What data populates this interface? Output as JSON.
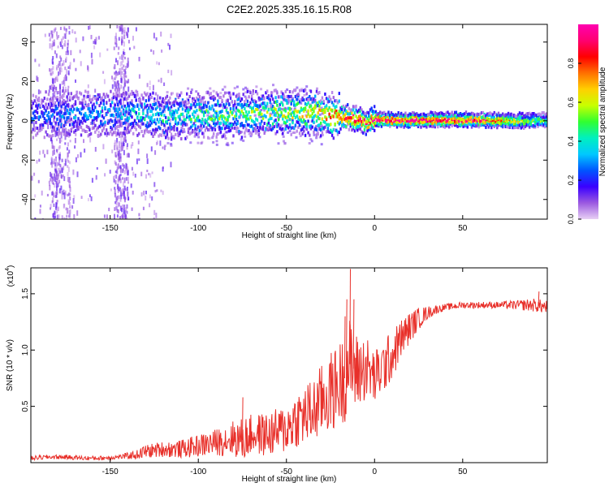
{
  "title": "C2E2.2025.335.16.15.R08",
  "chart_data": [
    {
      "type": "heatmap",
      "name": "spectrogram",
      "title": "C2E2.2025.335.16.15.R08",
      "xlabel": "Height of straight line (km)",
      "ylabel": "Frequency (Hz)",
      "xlim": [
        -195,
        98
      ],
      "ylim": [
        -50,
        49
      ],
      "xticks": [
        -150,
        -100,
        -50,
        0,
        50
      ],
      "yticks": [
        -40,
        -20,
        0,
        20,
        40
      ],
      "ridge": {
        "x": [
          -195,
          -160,
          -140,
          -120,
          -100,
          -80,
          -60,
          -45,
          -35,
          -25,
          -18,
          -12,
          -8,
          -5,
          0,
          10,
          30,
          60,
          85,
          98
        ],
        "freq": [
          3,
          4,
          4,
          2,
          3,
          3,
          4,
          4,
          4,
          3,
          2,
          1,
          0.5,
          -1,
          1,
          0.5,
          0.5,
          0.5,
          0,
          0.5
        ],
        "amplitude": [
          0.25,
          0.3,
          0.35,
          0.4,
          0.45,
          0.5,
          0.55,
          0.6,
          0.65,
          0.75,
          0.85,
          0.9,
          0.9,
          0.85,
          0.95,
          0.95,
          0.95,
          0.9,
          0.6,
          0.5
        ]
      },
      "colorbar": {
        "label": "Normalized spectral amplitude",
        "range": [
          0.0,
          1.0
        ],
        "ticks": [
          0.0,
          0.2,
          0.4,
          0.6,
          0.8
        ],
        "tick_labels": [
          "0.0",
          "0.2",
          "0.4",
          "0.6",
          "0.8"
        ],
        "colors": [
          "#e8d0f4",
          "#9b59e0",
          "#3a00ff",
          "#0055ff",
          "#00c8ff",
          "#00f0c0",
          "#30ff30",
          "#c8ff00",
          "#ffd000",
          "#ff7000",
          "#ff0000",
          "#ff0070",
          "#ff00b0"
        ]
      }
    },
    {
      "type": "line",
      "name": "snr",
      "xlabel": "Height of straight line (km)",
      "ylabel": "SNR (10 * v/v)",
      "scale_label": "(x10",
      "scale_exponent": "4",
      "xlim": [
        -195,
        98
      ],
      "ylim": [
        0,
        1.73
      ],
      "xticks": [
        -150,
        -100,
        -50,
        0,
        50
      ],
      "yticks": [
        0.5,
        1.0,
        1.5
      ],
      "ytick_labels": [
        "0.5",
        "1.0",
        "1.5"
      ],
      "series": [
        {
          "name": "SNR",
          "color": "#e8302a",
          "x": [
            -195,
            -185,
            -175,
            -165,
            -155,
            -145,
            -135,
            -130,
            -120,
            -110,
            -100,
            -90,
            -80,
            -75,
            -70,
            -60,
            -50,
            -45,
            -40,
            -35,
            -30,
            -25,
            -20,
            -17,
            -15,
            -13,
            -10,
            -5,
            0,
            5,
            10,
            15,
            20,
            25,
            30,
            35,
            40,
            50,
            60,
            70,
            80,
            90,
            98
          ],
          "y": [
            0.04,
            0.05,
            0.05,
            0.04,
            0.04,
            0.05,
            0.07,
            0.1,
            0.12,
            0.12,
            0.15,
            0.18,
            0.22,
            0.2,
            0.25,
            0.25,
            0.3,
            0.38,
            0.42,
            0.45,
            0.55,
            0.62,
            0.7,
            0.75,
            0.9,
            0.85,
            0.8,
            0.85,
            0.75,
            0.85,
            0.95,
            1.1,
            1.2,
            1.28,
            1.33,
            1.36,
            1.38,
            1.4,
            1.4,
            1.4,
            1.4,
            1.4,
            1.38
          ],
          "noise": [
            0.02,
            0.02,
            0.02,
            0.02,
            0.02,
            0.02,
            0.04,
            0.06,
            0.07,
            0.08,
            0.1,
            0.12,
            0.16,
            0.2,
            0.18,
            0.2,
            0.22,
            0.25,
            0.28,
            0.3,
            0.33,
            0.36,
            0.38,
            0.4,
            0.42,
            0.4,
            0.35,
            0.3,
            0.25,
            0.25,
            0.22,
            0.18,
            0.14,
            0.1,
            0.06,
            0.04,
            0.03,
            0.03,
            0.03,
            0.03,
            0.04,
            0.06,
            0.06
          ],
          "spikes": [
            [
              -75,
              0.58
            ],
            [
              -17,
              1.3
            ],
            [
              -16,
              1.45
            ],
            [
              -14,
              1.72
            ],
            [
              -12,
              1.45
            ],
            [
              93,
              1.52
            ]
          ]
        }
      ]
    }
  ]
}
